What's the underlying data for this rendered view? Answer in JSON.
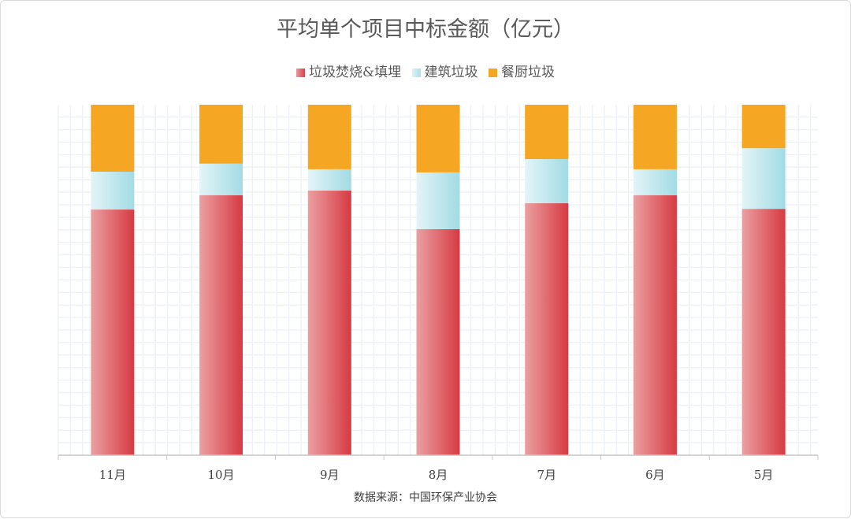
{
  "chart_data": {
    "type": "bar",
    "stacked": true,
    "normalized_percent": true,
    "title": "平均单个项目中标金额（亿元）",
    "categories": [
      "11月",
      "10月",
      "9月",
      "8月",
      "7月",
      "6月",
      "5月"
    ],
    "series": [
      {
        "name": "垃圾焚烧&填埋",
        "color": "#d9434b",
        "values": [
          70.1,
          74.2,
          75.5,
          64.5,
          71.9,
          74.2,
          70.3
        ]
      },
      {
        "name": "建筑垃圾",
        "color": "#a9dfe6",
        "values": [
          10.8,
          9.0,
          6.1,
          16.2,
          12.6,
          7.4,
          17.3
        ]
      },
      {
        "name": "餐厨垃圾",
        "color": "#f5a623",
        "values": [
          19.1,
          16.8,
          18.4,
          19.3,
          15.5,
          18.4,
          12.4
        ]
      }
    ],
    "ylim": [
      0,
      100
    ],
    "grid": true,
    "legend_position": "top",
    "source": "数据来源：中国环保产业协会"
  }
}
